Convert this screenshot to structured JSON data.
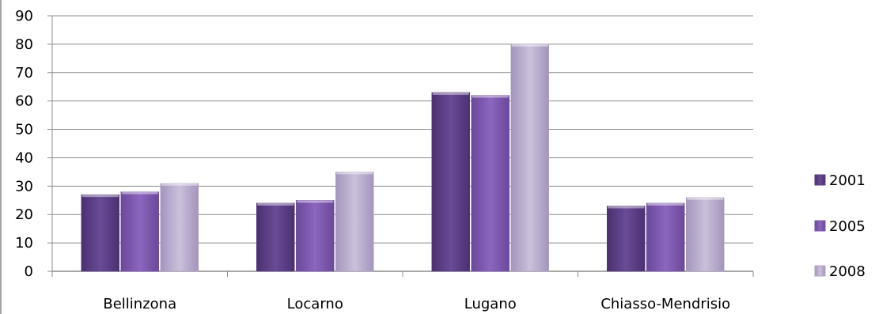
{
  "chart_data": {
    "type": "bar",
    "categories": [
      "Bellinzona",
      "Locarno",
      "Lugano",
      "Chiasso-Mendrisio"
    ],
    "series": [
      {
        "name": "2001",
        "values": [
          27,
          24,
          63,
          23
        ],
        "color": "#5c3f86"
      },
      {
        "name": "2005",
        "values": [
          28,
          25,
          62,
          24
        ],
        "color": "#7a55ad"
      },
      {
        "name": "2008",
        "values": [
          31,
          35,
          80,
          26
        ],
        "color": "#b4a6c9"
      }
    ],
    "ylim": [
      0,
      90
    ],
    "yticks": [
      0,
      10,
      20,
      30,
      40,
      50,
      60,
      70,
      80,
      90
    ],
    "grid": true,
    "legend_position": "right",
    "title": "",
    "xlabel": "",
    "ylabel": ""
  }
}
